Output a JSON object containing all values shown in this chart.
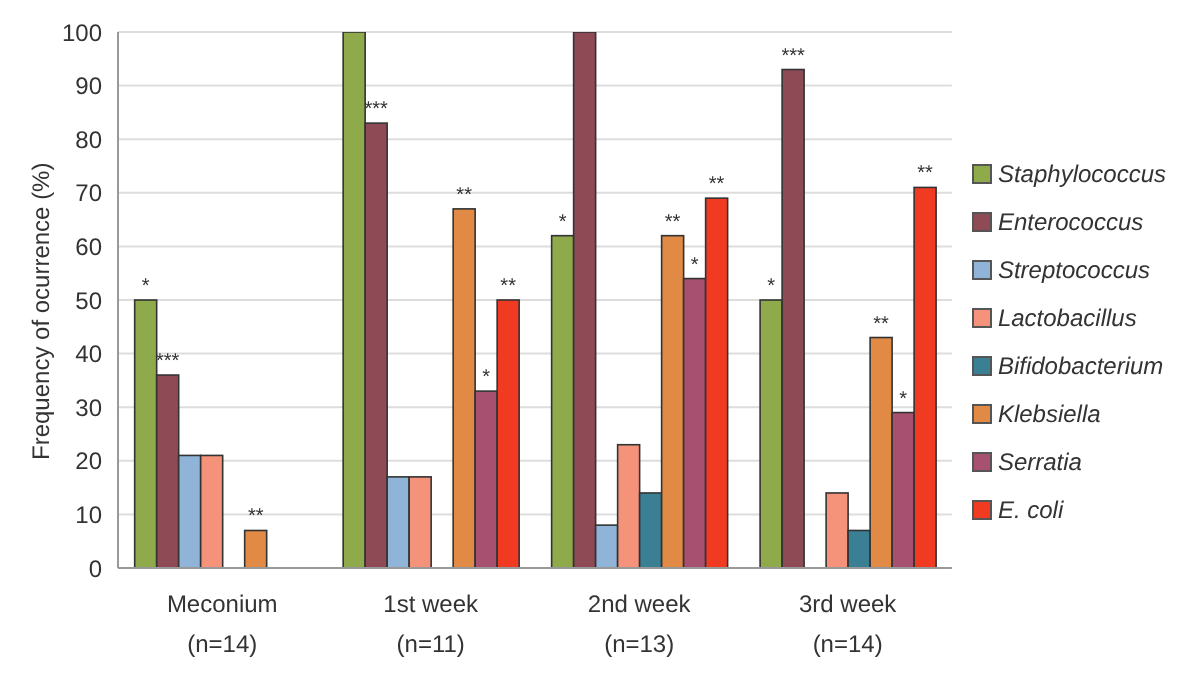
{
  "chart_data": {
    "type": "bar",
    "ylabel": "Frequency of ocurrence (%)",
    "categories": [
      "Meconium\n(n=14)",
      "1st week\n(n=11)",
      "2nd week\n(n=13)",
      "3rd week\n(n=14)"
    ],
    "series": [
      {
        "name": "Staphylococcus",
        "color": "#8faa4b",
        "values": [
          50,
          100,
          62,
          50
        ],
        "value_labels": [
          "*",
          null,
          "*",
          "*"
        ]
      },
      {
        "name": "Enterococcus",
        "color": "#8e4a55",
        "values": [
          36,
          83,
          100,
          93
        ],
        "value_labels": [
          "***",
          "***",
          null,
          "***"
        ]
      },
      {
        "name": "Streptococcus",
        "color": "#8fb4d8",
        "values": [
          21,
          17,
          8,
          0
        ]
      },
      {
        "name": "Lactobacillus",
        "color": "#f4927a",
        "values": [
          21,
          17,
          23,
          14
        ]
      },
      {
        "name": "Bifidobacterium",
        "color": "#3a7f94",
        "values": [
          0,
          0,
          14,
          7
        ]
      },
      {
        "name": "Klebsiella",
        "color": "#e08a45",
        "values": [
          7,
          67,
          62,
          43
        ],
        "value_labels": [
          "**",
          "**",
          "**",
          "**"
        ]
      },
      {
        "name": "Serratia",
        "color": "#a8506f",
        "values": [
          0,
          33,
          54,
          29
        ],
        "value_labels": [
          null,
          "*",
          "*",
          "*"
        ]
      },
      {
        "name": "E. coli",
        "color": "#f03a22",
        "values": [
          0,
          50,
          69,
          71
        ],
        "value_labels": [
          null,
          "**",
          "**",
          "**"
        ]
      }
    ],
    "ylim": [
      0,
      100
    ],
    "yticks": [
      0,
      10,
      20,
      30,
      40,
      50,
      60,
      70,
      80,
      90,
      100
    ],
    "grid": "y",
    "legend": "right"
  }
}
